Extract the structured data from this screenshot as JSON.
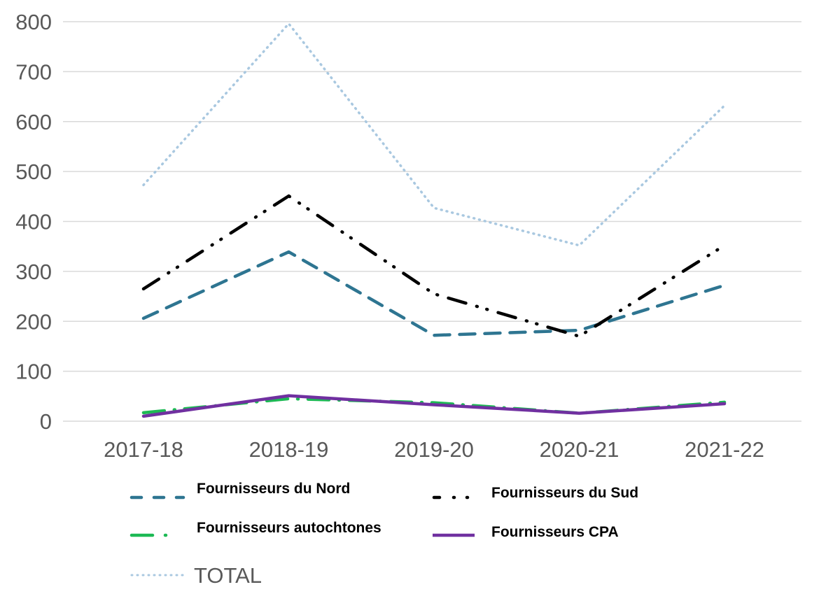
{
  "chart_data": {
    "type": "line",
    "title": "",
    "xlabel": "",
    "ylabel": "",
    "categories": [
      "2017-18",
      "2018-19",
      "2019-20",
      "2020-21",
      "2021-22"
    ],
    "ylim": [
      0,
      800
    ],
    "yticks": [
      0,
      100,
      200,
      300,
      400,
      500,
      600,
      700,
      800
    ],
    "grid": true,
    "legend_position": "bottom",
    "series": [
      {
        "name": "Fournisseurs du Nord",
        "color": "#2e7591",
        "style": "dash",
        "values": [
          206,
          339,
          172,
          182,
          272
        ]
      },
      {
        "name": "Fournisseurs du Sud",
        "color": "#000000",
        "style": "dash-dot-dot",
        "values": [
          265,
          451,
          255,
          170,
          352
        ]
      },
      {
        "name": "Fournisseurs autochtones",
        "color": "#1db954",
        "style": "dash-dot",
        "values": [
          17,
          45,
          37,
          16,
          38
        ]
      },
      {
        "name": "Fournisseurs CPA",
        "color": "#7030a0",
        "style": "solid",
        "values": [
          10,
          51,
          33,
          16,
          35
        ]
      },
      {
        "name": "TOTAL",
        "color": "#a9c8e0",
        "style": "dot",
        "values": [
          473,
          796,
          427,
          352,
          632
        ]
      }
    ]
  }
}
